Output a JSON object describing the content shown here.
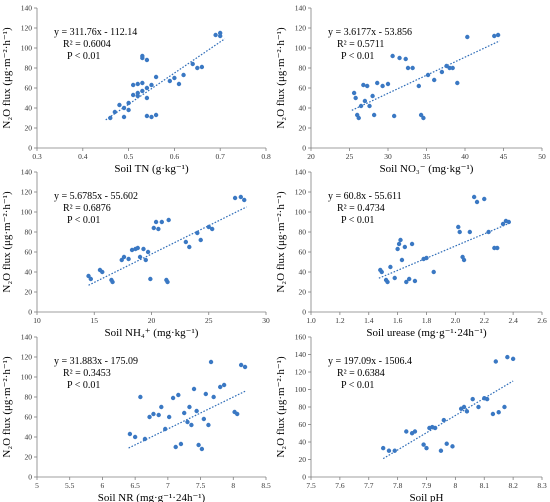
{
  "colors": {
    "point": "#3a78c3",
    "trendline": "#2f6db8",
    "axis": "#7f7f7f"
  },
  "chart_data": [
    {
      "type": "scatter",
      "ylabel": "N₂O flux (μg·m⁻²·h⁻¹)",
      "xlabel": "Soil TN (g·kg⁻¹)",
      "xlim": [
        0.3,
        0.8
      ],
      "xticks": [
        "0.3",
        "0.4",
        "0.5",
        "0.6",
        "0.7",
        "0.8"
      ],
      "ylim": [
        0,
        140
      ],
      "yticks": [
        "0",
        "20",
        "40",
        "60",
        "80",
        "100",
        "120",
        "140"
      ],
      "equation": "y = 311.76x - 112.14",
      "r2": "R² = 0.6004",
      "p": "P < 0.01",
      "trend": {
        "slope": 311.76,
        "intercept": -112.14,
        "x_range": [
          0.45,
          0.71
        ]
      },
      "points": [
        {
          "x": 0.46,
          "y": 30
        },
        {
          "x": 0.47,
          "y": 36
        },
        {
          "x": 0.48,
          "y": 43
        },
        {
          "x": 0.49,
          "y": 40
        },
        {
          "x": 0.49,
          "y": 31
        },
        {
          "x": 0.5,
          "y": 45
        },
        {
          "x": 0.5,
          "y": 38
        },
        {
          "x": 0.51,
          "y": 63
        },
        {
          "x": 0.51,
          "y": 53
        },
        {
          "x": 0.52,
          "y": 64
        },
        {
          "x": 0.52,
          "y": 55
        },
        {
          "x": 0.52,
          "y": 52
        },
        {
          "x": 0.53,
          "y": 65
        },
        {
          "x": 0.53,
          "y": 57
        },
        {
          "x": 0.53,
          "y": 90
        },
        {
          "x": 0.53,
          "y": 92
        },
        {
          "x": 0.54,
          "y": 88
        },
        {
          "x": 0.54,
          "y": 60
        },
        {
          "x": 0.54,
          "y": 50
        },
        {
          "x": 0.54,
          "y": 32
        },
        {
          "x": 0.55,
          "y": 63
        },
        {
          "x": 0.55,
          "y": 31
        },
        {
          "x": 0.56,
          "y": 71
        },
        {
          "x": 0.56,
          "y": 33
        },
        {
          "x": 0.59,
          "y": 67
        },
        {
          "x": 0.6,
          "y": 70
        },
        {
          "x": 0.61,
          "y": 64
        },
        {
          "x": 0.62,
          "y": 73
        },
        {
          "x": 0.64,
          "y": 84
        },
        {
          "x": 0.65,
          "y": 80
        },
        {
          "x": 0.66,
          "y": 81
        },
        {
          "x": 0.69,
          "y": 113
        },
        {
          "x": 0.7,
          "y": 112
        },
        {
          "x": 0.7,
          "y": 115
        }
      ]
    },
    {
      "type": "scatter",
      "ylabel": "N₂O flux (μg·m⁻²·h⁻¹)",
      "xlabel": "Soil NO₃⁻ (mg·kg⁻¹)",
      "xlim": [
        20,
        50
      ],
      "xticks": [
        "20",
        "25",
        "30",
        "35",
        "40",
        "45",
        "50"
      ],
      "ylim": [
        0,
        140
      ],
      "yticks": [
        "0",
        "20",
        "40",
        "60",
        "80",
        "100",
        "120",
        "140"
      ],
      "equation": "y = 3.6177x - 53.856",
      "r2": "R² = 0.5711",
      "p": "P < 0.01",
      "trend": {
        "slope": 3.6177,
        "intercept": -53.856,
        "x_range": [
          25.3,
          44.5
        ]
      },
      "points": [
        {
          "x": 25.6,
          "y": 55
        },
        {
          "x": 25.8,
          "y": 50
        },
        {
          "x": 26,
          "y": 33
        },
        {
          "x": 26.2,
          "y": 30
        },
        {
          "x": 26.5,
          "y": 42
        },
        {
          "x": 26.8,
          "y": 63
        },
        {
          "x": 27,
          "y": 47
        },
        {
          "x": 27.3,
          "y": 62
        },
        {
          "x": 27.6,
          "y": 42
        },
        {
          "x": 28,
          "y": 52
        },
        {
          "x": 28.2,
          "y": 33
        },
        {
          "x": 28.6,
          "y": 65
        },
        {
          "x": 29.3,
          "y": 62
        },
        {
          "x": 30,
          "y": 64
        },
        {
          "x": 30.6,
          "y": 92
        },
        {
          "x": 30.8,
          "y": 32
        },
        {
          "x": 31.5,
          "y": 90
        },
        {
          "x": 32.3,
          "y": 89
        },
        {
          "x": 32.6,
          "y": 80
        },
        {
          "x": 33.2,
          "y": 80
        },
        {
          "x": 34,
          "y": 62
        },
        {
          "x": 34.3,
          "y": 33
        },
        {
          "x": 34.6,
          "y": 30
        },
        {
          "x": 35.2,
          "y": 73
        },
        {
          "x": 36,
          "y": 68
        },
        {
          "x": 37,
          "y": 76
        },
        {
          "x": 37.6,
          "y": 82
        },
        {
          "x": 38,
          "y": 80
        },
        {
          "x": 38.4,
          "y": 80
        },
        {
          "x": 39,
          "y": 65
        },
        {
          "x": 40.3,
          "y": 111
        },
        {
          "x": 43.8,
          "y": 112
        },
        {
          "x": 44.3,
          "y": 113
        }
      ]
    },
    {
      "type": "scatter",
      "ylabel": "N₂O flux (μg·m⁻²·h⁻¹)",
      "xlabel": "Soil NH₄⁺ (mg·kg⁻¹)",
      "xlim": [
        10,
        30
      ],
      "xticks": [
        "10",
        "15",
        "20",
        "25",
        "30"
      ],
      "ylim": [
        0,
        140
      ],
      "yticks": [
        "0",
        "20",
        "40",
        "60",
        "80",
        "100",
        "120",
        "140"
      ],
      "equation": "y = 5.6785x - 55.602",
      "r2": "R² = 0.6876",
      "p": "P < 0.01",
      "trend": {
        "slope": 5.6785,
        "intercept": -55.602,
        "x_range": [
          14.5,
          28.3
        ]
      },
      "points": [
        {
          "x": 14.5,
          "y": 36
        },
        {
          "x": 14.7,
          "y": 33
        },
        {
          "x": 15.5,
          "y": 42
        },
        {
          "x": 15.7,
          "y": 40
        },
        {
          "x": 16.5,
          "y": 32
        },
        {
          "x": 16.6,
          "y": 30
        },
        {
          "x": 17.4,
          "y": 52
        },
        {
          "x": 17.6,
          "y": 55
        },
        {
          "x": 18,
          "y": 53
        },
        {
          "x": 18.3,
          "y": 62
        },
        {
          "x": 18.6,
          "y": 63
        },
        {
          "x": 18.8,
          "y": 64
        },
        {
          "x": 19,
          "y": 55
        },
        {
          "x": 19.3,
          "y": 63
        },
        {
          "x": 19.5,
          "y": 52
        },
        {
          "x": 19.7,
          "y": 60
        },
        {
          "x": 19.9,
          "y": 33
        },
        {
          "x": 20.2,
          "y": 84
        },
        {
          "x": 20.4,
          "y": 90
        },
        {
          "x": 20.6,
          "y": 83
        },
        {
          "x": 20.9,
          "y": 90
        },
        {
          "x": 21.3,
          "y": 32
        },
        {
          "x": 21.4,
          "y": 30
        },
        {
          "x": 21.5,
          "y": 92
        },
        {
          "x": 23,
          "y": 70
        },
        {
          "x": 23.3,
          "y": 65
        },
        {
          "x": 24,
          "y": 79
        },
        {
          "x": 24.3,
          "y": 72
        },
        {
          "x": 25,
          "y": 85
        },
        {
          "x": 25.3,
          "y": 83
        },
        {
          "x": 27.3,
          "y": 114
        },
        {
          "x": 27.8,
          "y": 115
        },
        {
          "x": 28.1,
          "y": 112
        }
      ]
    },
    {
      "type": "scatter",
      "ylabel": "N₂O flux (μg·m⁻²·h⁻¹)",
      "xlabel": "Soil urease (mg·g⁻¹·24h⁻¹)",
      "xlim": [
        1.0,
        2.6
      ],
      "xticks": [
        "1.0",
        "1.2",
        "1.4",
        "1.6",
        "1.8",
        "2.0",
        "2.2",
        "2.4",
        "2.6"
      ],
      "ylim": [
        0,
        140
      ],
      "yticks": [
        "0",
        "20",
        "40",
        "60",
        "80",
        "100",
        "120",
        "140"
      ],
      "equation": "y = 60.8x - 55.611",
      "r2": "R² = 0.4734",
      "p": "P < 0.01",
      "trend": {
        "slope": 60.8,
        "intercept": -55.611,
        "x_range": [
          1.47,
          2.38
        ]
      },
      "points": [
        {
          "x": 1.48,
          "y": 42
        },
        {
          "x": 1.49,
          "y": 40
        },
        {
          "x": 1.52,
          "y": 32
        },
        {
          "x": 1.53,
          "y": 30
        },
        {
          "x": 1.55,
          "y": 45
        },
        {
          "x": 1.58,
          "y": 34
        },
        {
          "x": 1.6,
          "y": 63
        },
        {
          "x": 1.61,
          "y": 68
        },
        {
          "x": 1.62,
          "y": 72
        },
        {
          "x": 1.63,
          "y": 52
        },
        {
          "x": 1.65,
          "y": 65
        },
        {
          "x": 1.66,
          "y": 30
        },
        {
          "x": 1.68,
          "y": 33
        },
        {
          "x": 1.7,
          "y": 68
        },
        {
          "x": 1.72,
          "y": 31
        },
        {
          "x": 1.78,
          "y": 53
        },
        {
          "x": 1.8,
          "y": 54
        },
        {
          "x": 1.85,
          "y": 40
        },
        {
          "x": 2.02,
          "y": 85
        },
        {
          "x": 2.03,
          "y": 80
        },
        {
          "x": 2.05,
          "y": 55
        },
        {
          "x": 2.06,
          "y": 52
        },
        {
          "x": 2.1,
          "y": 80
        },
        {
          "x": 2.13,
          "y": 115
        },
        {
          "x": 2.15,
          "y": 110
        },
        {
          "x": 2.2,
          "y": 113
        },
        {
          "x": 2.23,
          "y": 80
        },
        {
          "x": 2.27,
          "y": 64
        },
        {
          "x": 2.29,
          "y": 64
        },
        {
          "x": 2.33,
          "y": 88
        },
        {
          "x": 2.35,
          "y": 91
        },
        {
          "x": 2.37,
          "y": 90
        }
      ]
    },
    {
      "type": "scatter",
      "ylabel": "N₂O flux (μg·m⁻²·h⁻¹)",
      "xlabel": "Soil NR (mg·g⁻¹·24h⁻¹)",
      "xlim": [
        5,
        8.5
      ],
      "xticks": [
        "5",
        "5.5",
        "6",
        "6.5",
        "7",
        "7.5",
        "8",
        "8.5"
      ],
      "ylim": [
        0,
        140
      ],
      "yticks": [
        "0",
        "20",
        "40",
        "60",
        "80",
        "100",
        "120",
        "140"
      ],
      "equation": "y = 31.883x - 175.09",
      "r2": "R² = 0.3453",
      "p": "P < 0.01",
      "trend": {
        "slope": 31.883,
        "intercept": -175.09,
        "x_range": [
          6.4,
          8.2
        ]
      },
      "points": [
        {
          "x": 6.42,
          "y": 43
        },
        {
          "x": 6.5,
          "y": 40
        },
        {
          "x": 6.58,
          "y": 80
        },
        {
          "x": 6.65,
          "y": 38
        },
        {
          "x": 6.72,
          "y": 60
        },
        {
          "x": 6.78,
          "y": 63
        },
        {
          "x": 6.86,
          "y": 62
        },
        {
          "x": 6.9,
          "y": 70
        },
        {
          "x": 6.96,
          "y": 48
        },
        {
          "x": 7.02,
          "y": 60
        },
        {
          "x": 7.08,
          "y": 79
        },
        {
          "x": 7.12,
          "y": 30
        },
        {
          "x": 7.16,
          "y": 82
        },
        {
          "x": 7.2,
          "y": 33
        },
        {
          "x": 7.25,
          "y": 64
        },
        {
          "x": 7.3,
          "y": 55
        },
        {
          "x": 7.33,
          "y": 70
        },
        {
          "x": 7.36,
          "y": 52
        },
        {
          "x": 7.4,
          "y": 88
        },
        {
          "x": 7.44,
          "y": 66
        },
        {
          "x": 7.47,
          "y": 32
        },
        {
          "x": 7.52,
          "y": 28
        },
        {
          "x": 7.55,
          "y": 58
        },
        {
          "x": 7.58,
          "y": 83
        },
        {
          "x": 7.62,
          "y": 52
        },
        {
          "x": 7.66,
          "y": 115
        },
        {
          "x": 7.7,
          "y": 80
        },
        {
          "x": 7.8,
          "y": 90
        },
        {
          "x": 7.86,
          "y": 92
        },
        {
          "x": 8.02,
          "y": 65
        },
        {
          "x": 8.06,
          "y": 63
        },
        {
          "x": 8.12,
          "y": 112
        },
        {
          "x": 8.18,
          "y": 110
        }
      ]
    },
    {
      "type": "scatter",
      "ylabel": "N₂O flux (μg·m⁻²·h⁻¹)",
      "xlabel": "Soil pH",
      "xlim": [
        7.5,
        8.3
      ],
      "xticks": [
        "7.5",
        "7.6",
        "7.7",
        "7.8",
        "7.9",
        "8",
        "8.1",
        "8.2",
        "8.3"
      ],
      "ylim": [
        0,
        160
      ],
      "yticks": [
        "0",
        "20",
        "40",
        "60",
        "80",
        "100",
        "120",
        "140",
        "160"
      ],
      "equation": "y = 197.09x - 1506.4",
      "r2": "R² = 0.6384",
      "p": "P < 0.01",
      "trend": {
        "slope": 197.09,
        "intercept": -1506.4,
        "x_range": [
          7.75,
          8.2
        ]
      },
      "points": [
        {
          "x": 7.75,
          "y": 33
        },
        {
          "x": 7.77,
          "y": 30
        },
        {
          "x": 7.79,
          "y": 30
        },
        {
          "x": 7.83,
          "y": 52
        },
        {
          "x": 7.85,
          "y": 50
        },
        {
          "x": 7.86,
          "y": 52
        },
        {
          "x": 7.89,
          "y": 37
        },
        {
          "x": 7.9,
          "y": 33
        },
        {
          "x": 7.91,
          "y": 56
        },
        {
          "x": 7.92,
          "y": 57
        },
        {
          "x": 7.93,
          "y": 56
        },
        {
          "x": 7.95,
          "y": 30
        },
        {
          "x": 7.96,
          "y": 65
        },
        {
          "x": 7.97,
          "y": 38
        },
        {
          "x": 7.99,
          "y": 35
        },
        {
          "x": 8.02,
          "y": 78
        },
        {
          "x": 8.03,
          "y": 80
        },
        {
          "x": 8.04,
          "y": 75
        },
        {
          "x": 8.06,
          "y": 89
        },
        {
          "x": 8.08,
          "y": 80
        },
        {
          "x": 8.1,
          "y": 90
        },
        {
          "x": 8.11,
          "y": 89
        },
        {
          "x": 8.13,
          "y": 72
        },
        {
          "x": 8.14,
          "y": 132
        },
        {
          "x": 8.15,
          "y": 74
        },
        {
          "x": 8.17,
          "y": 80
        },
        {
          "x": 8.18,
          "y": 137
        },
        {
          "x": 8.2,
          "y": 135
        }
      ]
    }
  ]
}
